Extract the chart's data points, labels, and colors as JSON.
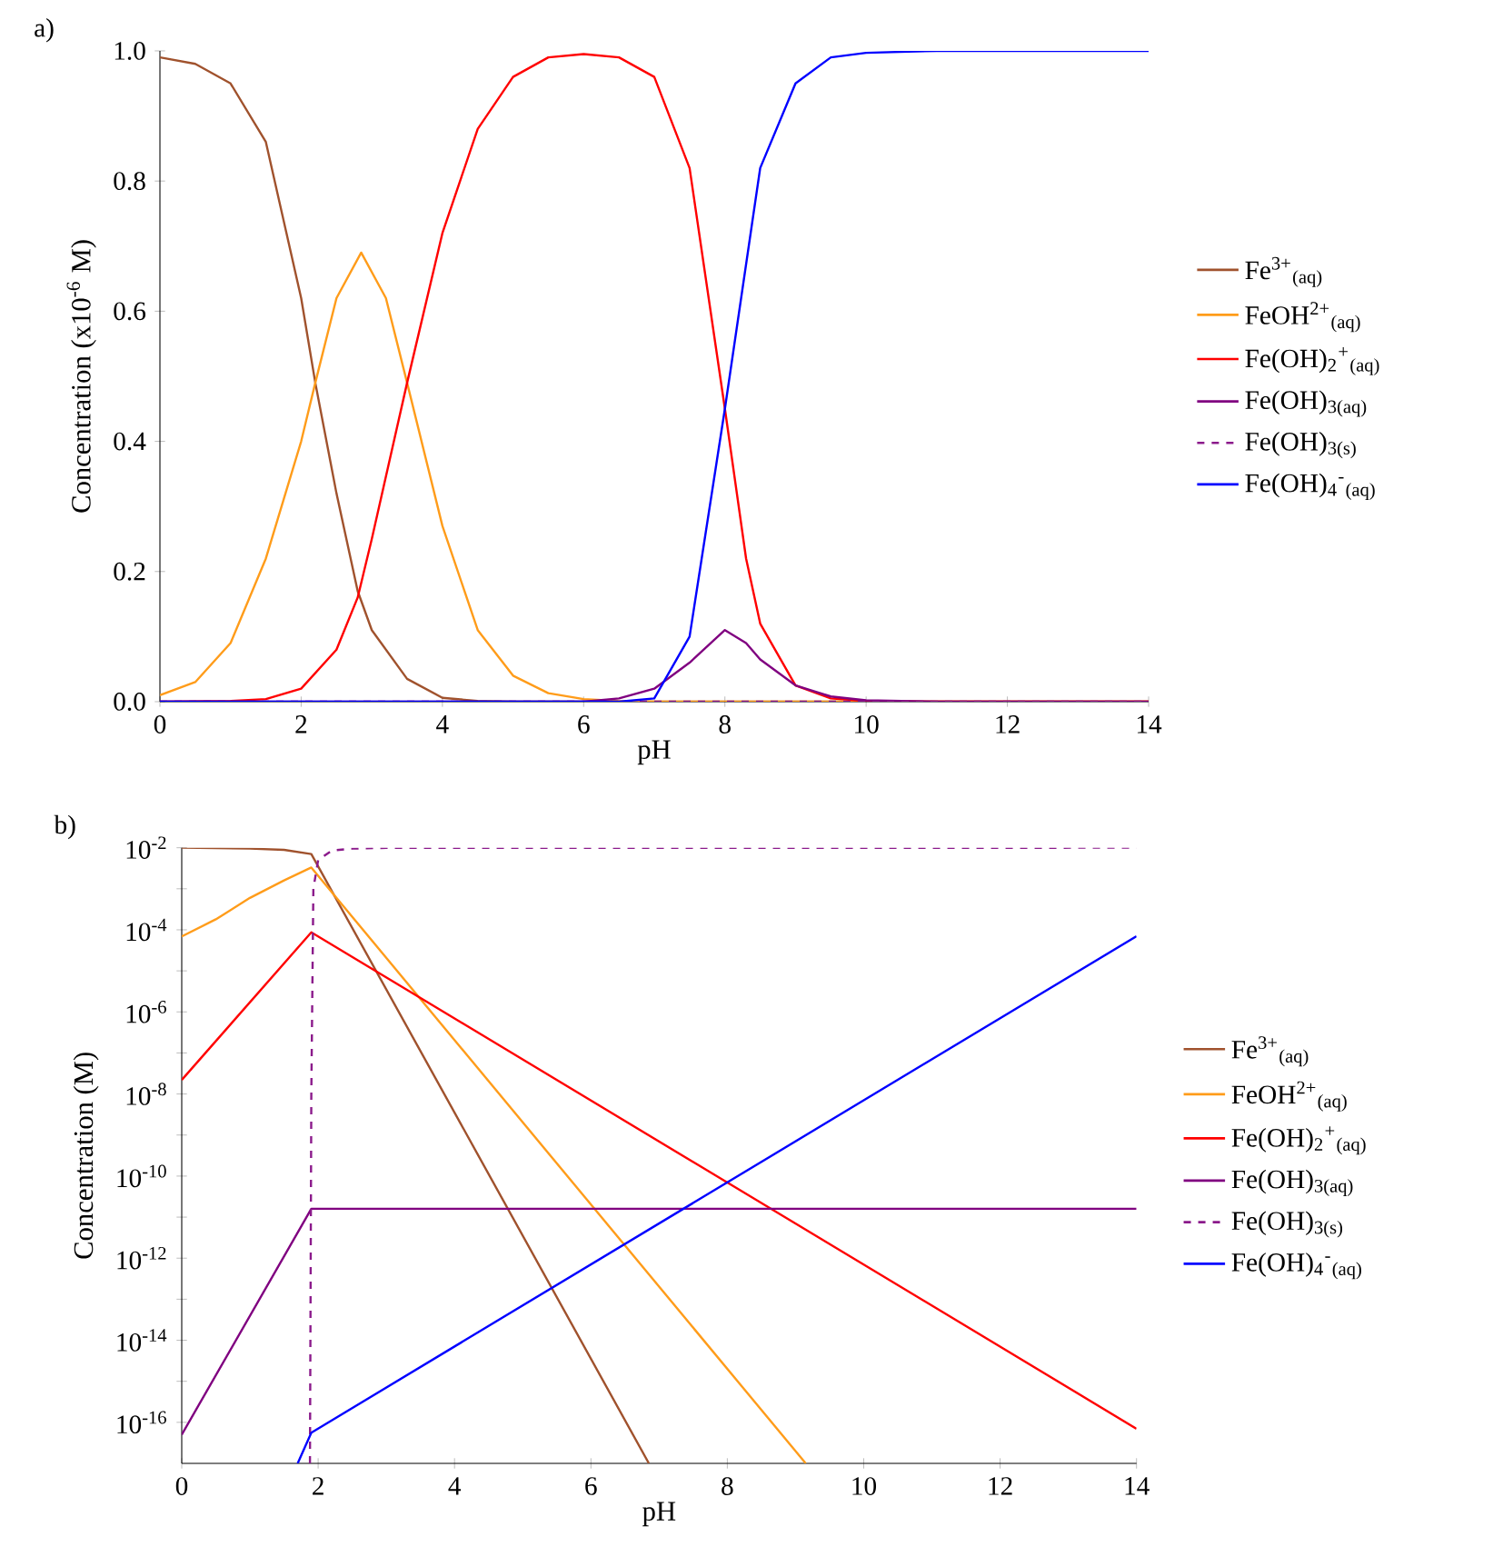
{
  "chart_data": [
    {
      "type": "line",
      "title": "a)",
      "xlabel": "pH",
      "ylabel": "Concentration (x10$^{-6}$ M)",
      "xlim": [
        0,
        14
      ],
      "ylim": [
        0,
        1.0
      ],
      "xticks": [
        0,
        2,
        4,
        6,
        8,
        10,
        12,
        14
      ],
      "yticks": [
        {
          "value": 0,
          "label": "0.0"
        },
        {
          "value": 0.2,
          "label": "0.2"
        },
        {
          "value": 0.4,
          "label": "0.4"
        },
        {
          "value": 0.6,
          "label": "0.6"
        },
        {
          "value": 0.8,
          "label": "0.8"
        },
        {
          "value": 1.0,
          "label": "1.0"
        }
      ],
      "grid": false,
      "legend": "right",
      "series": [
        {
          "name": "Fe$^{3+}$$_{(aq)}$",
          "color": "#a0522d",
          "x": [
            0,
            0.5,
            1,
            1.5,
            2,
            2.2,
            2.5,
            2.8,
            3,
            3.5,
            4,
            4.5,
            5,
            14
          ],
          "values": [
            0.99,
            0.98,
            0.95,
            0.86,
            0.62,
            0.49,
            0.32,
            0.17,
            0.11,
            0.035,
            0.006,
            0.001,
            0,
            0
          ]
        },
        {
          "name": "FeOH$^{2+}$$_{(aq)}$",
          "color": "#ff9c1a",
          "x": [
            0,
            0.5,
            1,
            1.5,
            2,
            2.2,
            2.5,
            2.85,
            3.2,
            3.5,
            4,
            4.5,
            5,
            5.5,
            6,
            6.5,
            7,
            14
          ],
          "values": [
            0.01,
            0.03,
            0.09,
            0.22,
            0.4,
            0.49,
            0.62,
            0.69,
            0.62,
            0.49,
            0.27,
            0.11,
            0.04,
            0.013,
            0.004,
            0.001,
            0,
            0
          ]
        },
        {
          "name": "Fe(OH)$_{2}$$^{+}$$_{(aq)}$",
          "color": "#ff0000",
          "x": [
            0,
            1,
            1.5,
            2,
            2.5,
            2.8,
            3,
            3.5,
            4,
            4.5,
            5,
            5.5,
            6,
            6.5,
            7,
            7.5,
            8,
            8.3,
            8.5,
            9,
            9.5,
            10,
            11,
            14
          ],
          "values": [
            0,
            0.001,
            0.004,
            0.02,
            0.08,
            0.16,
            0.25,
            0.49,
            0.72,
            0.88,
            0.96,
            0.99,
            0.995,
            0.99,
            0.96,
            0.82,
            0.45,
            0.22,
            0.12,
            0.025,
            0.005,
            0.001,
            0,
            0
          ]
        },
        {
          "name": "Fe(OH)$_{3(aq)}$",
          "color": "#800080",
          "x": [
            0,
            6,
            6.5,
            7,
            7.5,
            8,
            8.3,
            8.5,
            9,
            9.5,
            10,
            11,
            14
          ],
          "values": [
            0,
            0,
            0.005,
            0.02,
            0.06,
            0.11,
            0.09,
            0.065,
            0.025,
            0.008,
            0.002,
            0,
            0
          ]
        },
        {
          "name": "Fe(OH)$_{3(s)}$",
          "color": "#8b1a8b",
          "line_style": "dashed",
          "x": [
            0,
            14
          ],
          "values": [
            0,
            0
          ]
        },
        {
          "name": "Fe(OH)$_{4}$$^{-}$$_{(aq)}$",
          "color": "#0000ff",
          "x": [
            0,
            6.5,
            7,
            7.5,
            8,
            8.5,
            9,
            9.5,
            10,
            11,
            14
          ],
          "values": [
            0,
            0,
            0.005,
            0.1,
            0.45,
            0.82,
            0.95,
            0.99,
            0.997,
            1.0,
            1.0
          ]
        }
      ]
    },
    {
      "type": "line",
      "title": "b)",
      "xlabel": "pH",
      "ylabel": "Concentration (M)",
      "log": "y",
      "xlim": [
        0,
        14
      ],
      "ylim": [
        1e-17,
        0.01
      ],
      "xticks": [
        0,
        2,
        4,
        6,
        8,
        10,
        12,
        14
      ],
      "yticks": [
        {
          "value": 0.01,
          "label": "10$^{-2}$"
        },
        {
          "value": 0.001,
          "label": null
        },
        {
          "value": 0.0001,
          "label": "10$^{-4}$"
        },
        {
          "value": 1e-05,
          "label": null
        },
        {
          "value": 1e-06,
          "label": "10$^{-6}$"
        },
        {
          "value": 1e-07,
          "label": null
        },
        {
          "value": 1e-08,
          "label": "10$^{-8}$"
        },
        {
          "value": 1e-09,
          "label": null
        },
        {
          "value": 1e-10,
          "label": "10$^{-10}$"
        },
        {
          "value": 1e-11,
          "label": null
        },
        {
          "value": 1e-12,
          "label": "10$^{-12}$"
        },
        {
          "value": 1e-13,
          "label": null
        },
        {
          "value": 1e-14,
          "label": "10$^{-14}$"
        },
        {
          "value": 1e-15,
          "label": null
        },
        {
          "value": 1e-16,
          "label": "10$^{-16}$"
        }
      ],
      "grid": false,
      "legend": "right",
      "series": [
        {
          "name": "Fe$^{3+}$$_{(aq)}$",
          "color": "#a0522d",
          "x": [
            0,
            1,
            1.5,
            1.9,
            6.85
          ],
          "values": [
            0.01,
            0.0095,
            0.0089,
            0.007,
            1e-17
          ]
        },
        {
          "name": "FeOH$^{2+}$$_{(aq)}$",
          "color": "#ff9c1a",
          "x": [
            0,
            0.5,
            1,
            1.5,
            1.9,
            9.15
          ],
          "values": [
            6.9e-05,
            0.00018,
            0.0006,
            0.0016,
            0.0033,
            1e-17
          ]
        },
        {
          "name": "Fe(OH)$_{2}$$^{+}$$_{(aq)}$",
          "color": "#ff0000",
          "x": [
            0,
            1.9,
            14
          ],
          "values": [
            2.2e-08,
            8.7e-05,
            7e-17
          ]
        },
        {
          "name": "Fe(OH)$_{3(aq)}$",
          "color": "#800080",
          "x": [
            0,
            1.9,
            14
          ],
          "values": [
            5e-17,
            1.6e-11,
            1.6e-11
          ]
        },
        {
          "name": "Fe(OH)$_{3(s)}$",
          "color": "#8b1a8b",
          "line_style": "dashed",
          "x": [
            1.88,
            1.9,
            1.93,
            2.0,
            2.2,
            2.5,
            3,
            14
          ],
          "values": [
            1e-17,
            1e-08,
            0.001,
            0.005,
            0.0085,
            0.0095,
            0.0099,
            0.01
          ]
        },
        {
          "name": "Fe(OH)$_{4}$$^{-}$$_{(aq)}$",
          "color": "#0000ff",
          "x": [
            1.7,
            1.9,
            14
          ],
          "values": [
            1e-17,
            5.6e-17,
            7e-05
          ]
        }
      ]
    }
  ]
}
